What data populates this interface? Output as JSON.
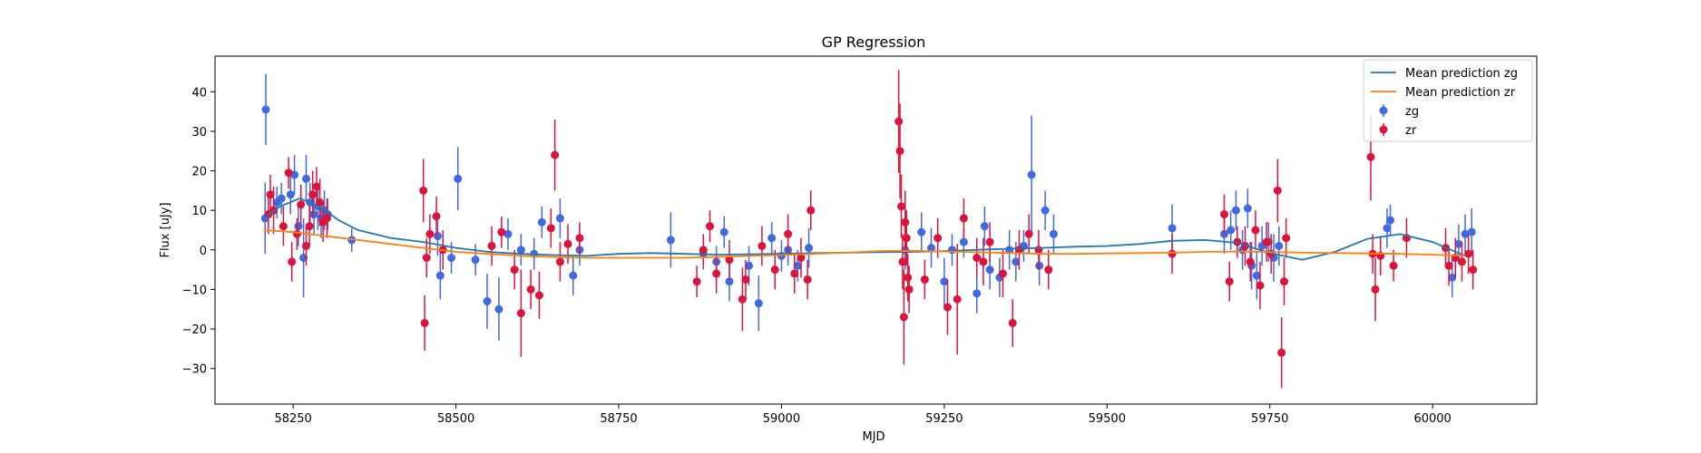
{
  "chart_data": {
    "type": "scatter",
    "title": "GP Regression",
    "xlabel": "MJD",
    "ylabel": "Flux [uJy]",
    "xlim": [
      58130,
      60160
    ],
    "ylim": [
      -39,
      49
    ],
    "xticks": [
      58250,
      58500,
      58750,
      59000,
      59250,
      59500,
      59750,
      60000
    ],
    "yticks": [
      -30,
      -20,
      -10,
      0,
      10,
      20,
      30,
      40
    ],
    "legend_position": "top-right",
    "colors": {
      "zg": "#4169e1",
      "zr": "#dc143c",
      "mean_zg": "#1f77b4",
      "mean_zr": "#ff7f0e"
    },
    "lines": [
      {
        "name": "Mean prediction zg",
        "x": [
          58205,
          58230,
          58260,
          58290,
          58320,
          58350,
          58400,
          58450,
          58500,
          58550,
          58600,
          58650,
          58700,
          58750,
          58800,
          58850,
          58900,
          58950,
          59000,
          59050,
          59100,
          59150,
          59200,
          59250,
          59300,
          59350,
          59400,
          59450,
          59500,
          59550,
          59600,
          59650,
          59700,
          59750,
          59800,
          59850,
          59900,
          59950,
          60000,
          60050
        ],
        "y": [
          8,
          11,
          13,
          11,
          7.5,
          5,
          3,
          2,
          0.5,
          -0.5,
          -1,
          -1.3,
          -1.5,
          -1,
          -0.8,
          -1,
          -1.2,
          -1.1,
          -1,
          -0.8,
          -0.7,
          -0.6,
          -0.5,
          -0.3,
          0,
          0.3,
          0.5,
          0.8,
          1,
          1.5,
          2.3,
          2.5,
          1.8,
          -0.8,
          -2.5,
          -0.5,
          2.8,
          4,
          2,
          -1.5
        ]
      },
      {
        "name": "Mean prediction zr",
        "x": [
          58205,
          58250,
          58300,
          58350,
          58400,
          58450,
          58500,
          58550,
          58600,
          58650,
          58700,
          58750,
          58800,
          58850,
          58900,
          58950,
          59000,
          59050,
          59100,
          59150,
          59200,
          59250,
          59300,
          59350,
          59400,
          59450,
          59500,
          59550,
          59600,
          59650,
          59700,
          59750,
          59800,
          59850,
          59900,
          59950,
          60000,
          60050
        ],
        "y": [
          5,
          4.5,
          3.5,
          2.5,
          1.5,
          0.5,
          -0.5,
          -1,
          -1.5,
          -1.8,
          -2,
          -2,
          -2,
          -2,
          -1.8,
          -1.5,
          -1.3,
          -1,
          -0.7,
          -0.3,
          -0.2,
          -0.4,
          -0.6,
          -0.8,
          -1,
          -1,
          -0.9,
          -0.8,
          -0.7,
          -0.5,
          -0.4,
          -0.5,
          -0.7,
          -0.8,
          -0.9,
          -1,
          -1.2,
          -1.5
        ]
      }
    ],
    "series": [
      {
        "name": "zg",
        "points": [
          [
            58207,
            8,
            9
          ],
          [
            58208,
            35.5,
            9
          ],
          [
            58225,
            12,
            4
          ],
          [
            58232,
            13,
            4
          ],
          [
            58246,
            14,
            5
          ],
          [
            58252,
            19,
            5
          ],
          [
            58258,
            6,
            5
          ],
          [
            58266,
            -2,
            10
          ],
          [
            58270,
            18,
            6
          ],
          [
            58276,
            12,
            5
          ],
          [
            58282,
            9,
            5
          ],
          [
            58288,
            11,
            6
          ],
          [
            58293,
            8,
            5
          ],
          [
            58298,
            10,
            5
          ],
          [
            58303,
            9,
            4
          ],
          [
            58340,
            2.5,
            3
          ],
          [
            58472,
            3.5,
            5
          ],
          [
            58476,
            -6.5,
            6
          ],
          [
            58493,
            -2,
            4
          ],
          [
            58503,
            18,
            8
          ],
          [
            58530,
            -2.5,
            4
          ],
          [
            58548,
            -13,
            7
          ],
          [
            58566,
            -15,
            8
          ],
          [
            58580,
            4,
            4
          ],
          [
            58600,
            0,
            4
          ],
          [
            58620,
            -1,
            4
          ],
          [
            58632,
            7,
            4
          ],
          [
            58660,
            8,
            5
          ],
          [
            58680,
            -6.5,
            5
          ],
          [
            58690,
            0,
            4
          ],
          [
            58830,
            2.5,
            7
          ],
          [
            58880,
            -1,
            4
          ],
          [
            58900,
            -3,
            4
          ],
          [
            58912,
            4.5,
            4
          ],
          [
            58920,
            -8,
            5
          ],
          [
            58950,
            -4,
            5
          ],
          [
            58965,
            -13.5,
            7
          ],
          [
            58985,
            3,
            4
          ],
          [
            59000,
            -1.5,
            4
          ],
          [
            59010,
            0,
            4
          ],
          [
            59025,
            -4,
            4
          ],
          [
            59042,
            0.5,
            5
          ],
          [
            59190,
            0,
            5
          ],
          [
            59215,
            4.5,
            5
          ],
          [
            59230,
            0.5,
            5
          ],
          [
            59250,
            -8,
            6
          ],
          [
            59262,
            0,
            4
          ],
          [
            59280,
            2,
            4
          ],
          [
            59300,
            -11,
            5
          ],
          [
            59312,
            6,
            5
          ],
          [
            59320,
            -5,
            5
          ],
          [
            59335,
            -7,
            5
          ],
          [
            59350,
            0,
            5
          ],
          [
            59360,
            -3,
            5
          ],
          [
            59372,
            1,
            4
          ],
          [
            59384,
            19,
            15
          ],
          [
            59396,
            -4,
            5
          ],
          [
            59405,
            10,
            5
          ],
          [
            59418,
            4,
            5
          ],
          [
            59600,
            5.5,
            6
          ],
          [
            59680,
            4,
            5
          ],
          [
            59690,
            5,
            5
          ],
          [
            59698,
            10,
            5
          ],
          [
            59708,
            0,
            5
          ],
          [
            59716,
            10.5,
            5
          ],
          [
            59722,
            -4,
            6
          ],
          [
            59730,
            -6.5,
            6
          ],
          [
            59738,
            1,
            5
          ],
          [
            59748,
            2,
            5
          ],
          [
            59756,
            -2,
            6
          ],
          [
            59764,
            1,
            5
          ],
          [
            59930,
            5.5,
            5
          ],
          [
            59935,
            7.5,
            4
          ],
          [
            60030,
            -7,
            5
          ],
          [
            60040,
            1.5,
            5
          ],
          [
            60050,
            4,
            5
          ],
          [
            60060,
            4.5,
            6
          ]
        ]
      },
      {
        "name": "zr",
        "points": [
          [
            58212,
            9,
            5
          ],
          [
            58215,
            14,
            5
          ],
          [
            58220,
            10,
            6
          ],
          [
            58235,
            6,
            5
          ],
          [
            58243,
            19.5,
            4
          ],
          [
            58248,
            -3,
            5
          ],
          [
            58256,
            4,
            4
          ],
          [
            58262,
            11.5,
            5
          ],
          [
            58270,
            1,
            5
          ],
          [
            58275,
            6,
            5
          ],
          [
            58280,
            14,
            6
          ],
          [
            58286,
            16,
            5
          ],
          [
            58291,
            12,
            6
          ],
          [
            58296,
            7,
            5
          ],
          [
            58302,
            8,
            5
          ],
          [
            58450,
            15,
            8
          ],
          [
            58452,
            -18.5,
            7
          ],
          [
            58455,
            -2,
            5
          ],
          [
            58460,
            4,
            5
          ],
          [
            58470,
            8.5,
            5
          ],
          [
            58480,
            0,
            5
          ],
          [
            58555,
            1,
            5
          ],
          [
            58570,
            4.5,
            4
          ],
          [
            58590,
            -5,
            5
          ],
          [
            58600,
            -16,
            11
          ],
          [
            58615,
            -10,
            5
          ],
          [
            58628,
            -11.5,
            6
          ],
          [
            58646,
            5.5,
            5
          ],
          [
            58652,
            24,
            9
          ],
          [
            58660,
            -3,
            5
          ],
          [
            58672,
            1.5,
            5
          ],
          [
            58690,
            3,
            4
          ],
          [
            58870,
            -8,
            4
          ],
          [
            58880,
            0,
            4
          ],
          [
            58890,
            6,
            4
          ],
          [
            58900,
            -6,
            5
          ],
          [
            58920,
            -2.5,
            5
          ],
          [
            58940,
            -12.5,
            8
          ],
          [
            58945,
            -7.5,
            5
          ],
          [
            58970,
            1,
            5
          ],
          [
            58990,
            -5,
            5
          ],
          [
            59010,
            4,
            5
          ],
          [
            59020,
            -6,
            5
          ],
          [
            59030,
            -2,
            5
          ],
          [
            59040,
            -7.5,
            5
          ],
          [
            59045,
            10,
            5
          ],
          [
            59180,
            32.5,
            13
          ],
          [
            59182,
            25,
            12
          ],
          [
            59184,
            11,
            8
          ],
          [
            59186,
            -3,
            7
          ],
          [
            59188,
            -17,
            12
          ],
          [
            59190,
            7,
            8
          ],
          [
            59192,
            3,
            7
          ],
          [
            59194,
            -7,
            6
          ],
          [
            59196,
            -10,
            6
          ],
          [
            59220,
            -7.5,
            5
          ],
          [
            59240,
            3,
            5
          ],
          [
            59255,
            -14.5,
            7
          ],
          [
            59270,
            -12.5,
            14
          ],
          [
            59280,
            8,
            5
          ],
          [
            59300,
            -2,
            5
          ],
          [
            59310,
            -3,
            6
          ],
          [
            59320,
            2,
            5
          ],
          [
            59340,
            -6,
            6
          ],
          [
            59355,
            -18.5,
            6
          ],
          [
            59365,
            0,
            5
          ],
          [
            59380,
            4,
            5
          ],
          [
            59395,
            0,
            5
          ],
          [
            59410,
            -5,
            5
          ],
          [
            59600,
            -1,
            5
          ],
          [
            59680,
            9,
            5
          ],
          [
            59688,
            -8,
            5
          ],
          [
            59700,
            2,
            4
          ],
          [
            59712,
            1,
            5
          ],
          [
            59720,
            -3,
            5
          ],
          [
            59728,
            5,
            5
          ],
          [
            59735,
            -9,
            6
          ],
          [
            59745,
            2,
            5
          ],
          [
            59752,
            -1,
            5
          ],
          [
            59762,
            15,
            8
          ],
          [
            59768,
            -26,
            9
          ],
          [
            59772,
            -8,
            6
          ],
          [
            59775,
            3,
            5
          ],
          [
            59905,
            23.5,
            11
          ],
          [
            59908,
            -1,
            5
          ],
          [
            59912,
            -10,
            8
          ],
          [
            59920,
            -1.5,
            5
          ],
          [
            59940,
            -4,
            4
          ],
          [
            59960,
            3,
            5
          ],
          [
            60020,
            0.5,
            5
          ],
          [
            60025,
            -4,
            5
          ],
          [
            60035,
            -2,
            5
          ],
          [
            60045,
            -3,
            5
          ],
          [
            60055,
            -1,
            5
          ],
          [
            60062,
            -5,
            5
          ]
        ]
      }
    ]
  }
}
